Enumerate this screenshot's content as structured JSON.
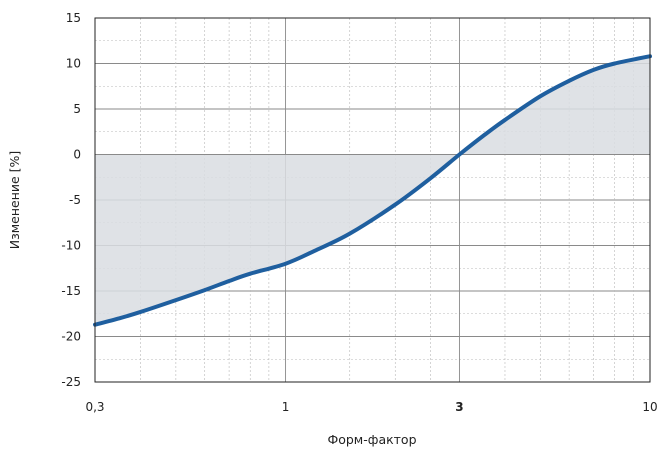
{
  "chart_data": {
    "type": "area",
    "title": "",
    "xlabel": "Форм-фактор",
    "ylabel": "Изменение [%]",
    "x_scale": "log",
    "xlim": [
      0.3,
      10
    ],
    "ylim": [
      -25,
      15
    ],
    "x_ticks": [
      {
        "value": 0.3,
        "label": "0,3"
      },
      {
        "value": 1,
        "label": "1"
      },
      {
        "value": 3,
        "label": "3",
        "bold": true
      },
      {
        "value": 10,
        "label": "10"
      }
    ],
    "y_ticks": [
      {
        "value": 15,
        "label": "15"
      },
      {
        "value": 10,
        "label": "10"
      },
      {
        "value": 5,
        "label": "5"
      },
      {
        "value": 0,
        "label": "0"
      },
      {
        "value": -5,
        "label": "-5"
      },
      {
        "value": -10,
        "label": "-10"
      },
      {
        "value": -15,
        "label": "-15"
      },
      {
        "value": -20,
        "label": "-20"
      },
      {
        "value": -25,
        "label": "-25"
      }
    ],
    "grid": true,
    "series": [
      {
        "x": [
          0.3,
          0.35,
          0.4,
          0.5,
          0.6,
          0.7,
          0.8,
          1.0,
          1.2,
          1.5,
          2.0,
          2.5,
          3.0,
          3.5,
          4.0,
          5.0,
          6.0,
          7.0,
          8.0,
          10.0
        ],
        "y": [
          -18.7,
          -18.0,
          -17.3,
          -16.0,
          -14.9,
          -13.9,
          -13.1,
          -12.0,
          -10.6,
          -8.7,
          -5.5,
          -2.6,
          0.0,
          2.1,
          3.8,
          6.4,
          8.1,
          9.3,
          10.0,
          10.8
        ],
        "color": "#1f5f9f",
        "fill_color": "#d9dde2"
      }
    ]
  }
}
